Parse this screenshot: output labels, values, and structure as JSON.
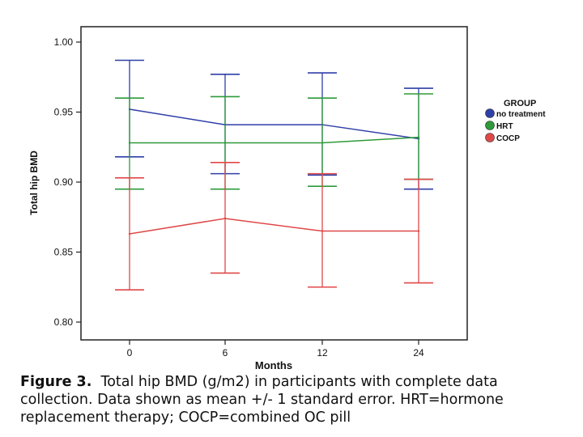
{
  "chart_data": {
    "type": "line",
    "title": "",
    "xlabel": "Months",
    "ylabel": "Total hip BMD",
    "categories": [
      "0",
      "6",
      "12",
      "24"
    ],
    "ylim": [
      0.8,
      1.0
    ],
    "yticks": [
      "0.80",
      "0.85",
      "0.90",
      "0.95",
      "1.00"
    ],
    "grid": false,
    "legend_placement": "right",
    "legend_title": "GROUP",
    "error_bars": "mean +/- 1 standard error",
    "series": [
      {
        "name": "no treatment",
        "color": "#2f3fa8",
        "values": [
          0.952,
          0.941,
          0.941,
          0.931
        ],
        "lower": [
          0.918,
          0.906,
          0.905,
          0.895
        ],
        "upper": [
          0.987,
          0.977,
          0.978,
          0.967
        ]
      },
      {
        "name": "HRT",
        "color": "#2e9a3a",
        "values": [
          0.928,
          0.928,
          0.928,
          0.932
        ],
        "lower": [
          0.895,
          0.895,
          0.897,
          0.902
        ],
        "upper": [
          0.96,
          0.961,
          0.96,
          0.963
        ]
      },
      {
        "name": "COCP",
        "color": "#e04848",
        "values": [
          0.863,
          0.874,
          0.865,
          0.865
        ],
        "lower": [
          0.823,
          0.835,
          0.825,
          0.828
        ],
        "upper": [
          0.903,
          0.914,
          0.906,
          0.902
        ]
      }
    ]
  },
  "caption": {
    "label": "Figure 3.",
    "text": "Total hip BMD (g/m2) in participants with complete data collection. Data shown as mean +/- 1 standard error. HRT=hormone replacement therapy; COCP=combined OC pill"
  }
}
